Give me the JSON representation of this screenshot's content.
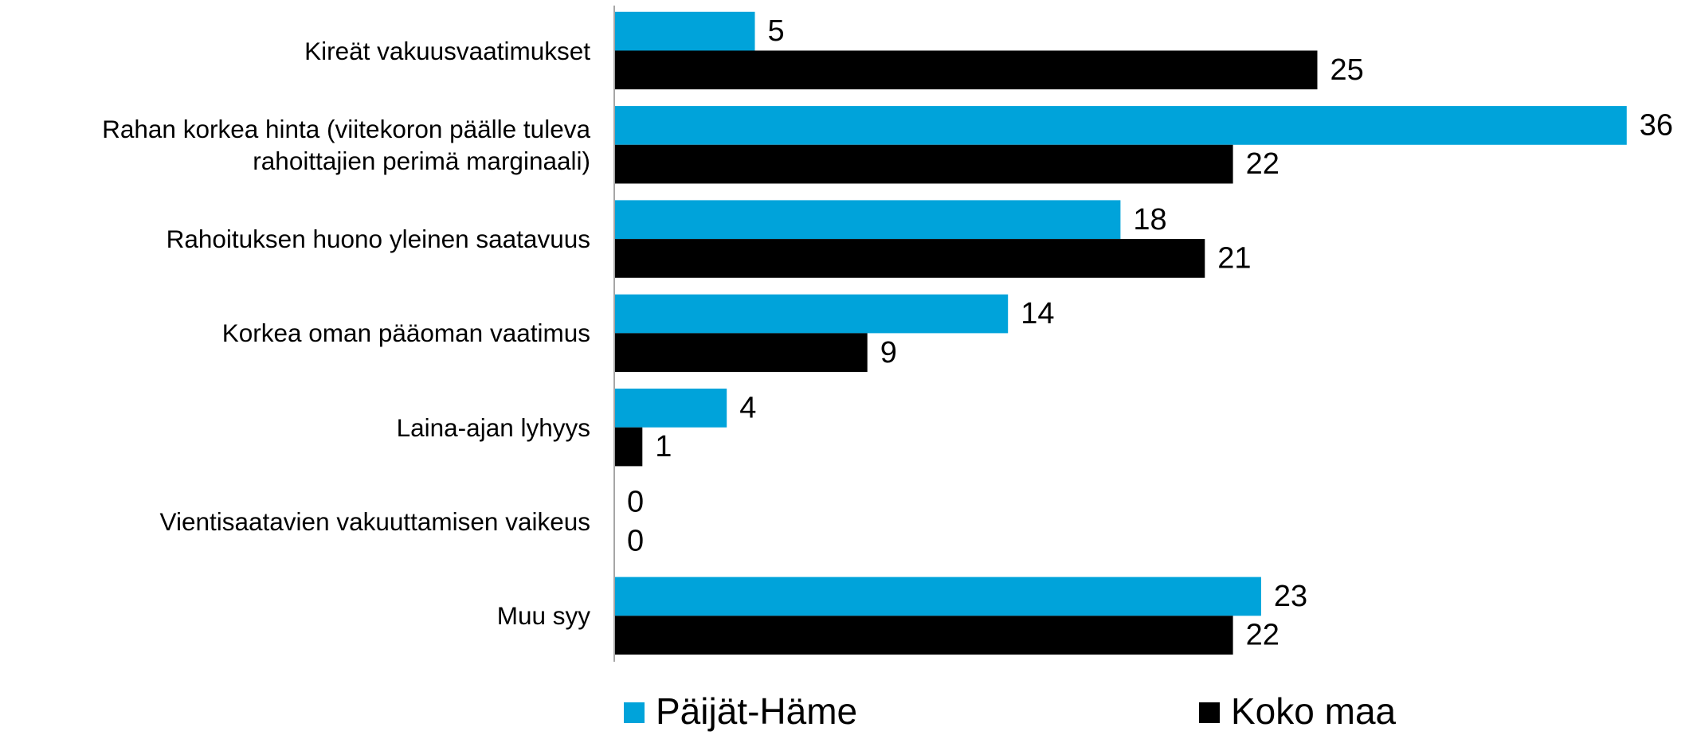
{
  "chart_data": {
    "type": "bar",
    "orientation": "horizontal",
    "categories": [
      "Kireät vakuusvaatimukset",
      "Rahan korkea hinta (viitekoron päälle tuleva rahoittajien perimä marginaali)",
      "Rahoituksen huono yleinen saatavuus",
      "Korkea oman pääoman vaatimus",
      "Laina-ajan lyhyys",
      "Vientisaatavien vakuuttamisen vaikeus",
      "Muu syy"
    ],
    "series": [
      {
        "name": "Päijät-Häme",
        "color": "#00a3da",
        "values": [
          5,
          36,
          18,
          14,
          4,
          0,
          23
        ]
      },
      {
        "name": "Koko maa",
        "color": "#000000",
        "values": [
          25,
          22,
          21,
          9,
          1,
          0,
          22
        ]
      }
    ],
    "legend": "bottom"
  }
}
